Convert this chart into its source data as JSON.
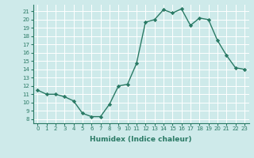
{
  "x": [
    0,
    1,
    2,
    3,
    4,
    5,
    6,
    7,
    8,
    9,
    10,
    11,
    12,
    13,
    14,
    15,
    16,
    17,
    18,
    19,
    20,
    21,
    22,
    23
  ],
  "y": [
    11.5,
    11.0,
    11.0,
    10.7,
    10.2,
    8.7,
    8.3,
    8.3,
    9.8,
    12.0,
    12.2,
    14.7,
    19.7,
    20.0,
    21.2,
    20.8,
    21.3,
    19.3,
    20.2,
    20.0,
    17.5,
    15.7,
    14.2,
    14.0
  ],
  "xlabel": "Humidex (Indice chaleur)",
  "yticks": [
    8,
    9,
    10,
    11,
    12,
    13,
    14,
    15,
    16,
    17,
    18,
    19,
    20,
    21
  ],
  "xticks": [
    0,
    1,
    2,
    3,
    4,
    5,
    6,
    7,
    8,
    9,
    10,
    11,
    12,
    13,
    14,
    15,
    16,
    17,
    18,
    19,
    20,
    21,
    22,
    23
  ],
  "ylim": [
    7.5,
    21.8
  ],
  "xlim": [
    -0.5,
    23.5
  ],
  "line_color": "#2a7a65",
  "marker": "D",
  "marker_size": 2.2,
  "bg_color": "#ceeaea",
  "grid_color": "#ffffff",
  "line_width": 1.0,
  "tick_fontsize": 5.0,
  "xlabel_fontsize": 6.5
}
